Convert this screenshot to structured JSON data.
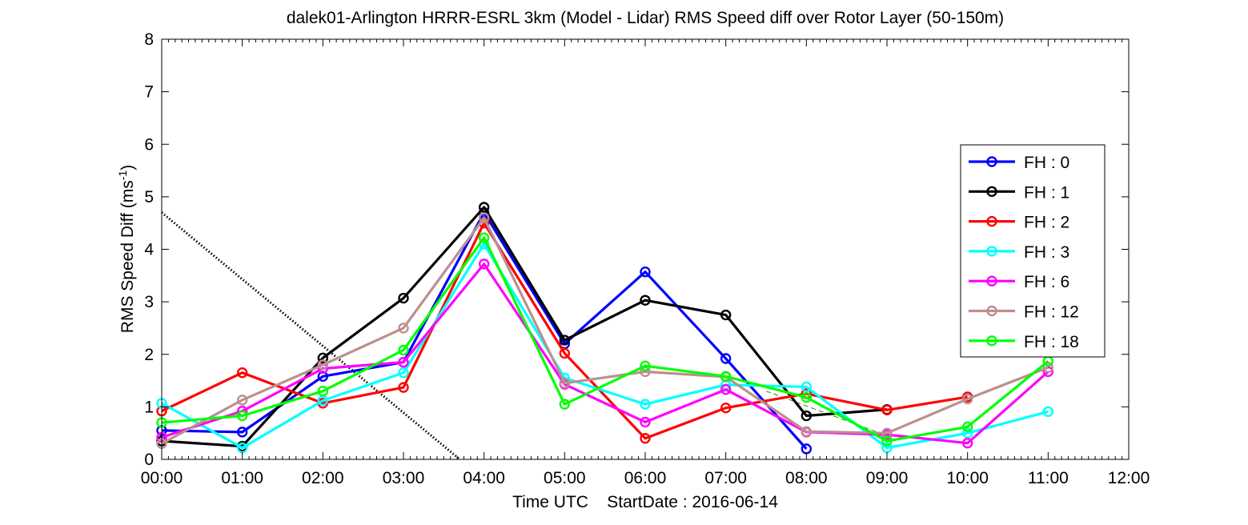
{
  "chart_data": {
    "type": "line",
    "title": "dalek01-Arlington HRRR-ESRL 3km (Model - Lidar) RMS Speed diff over Rotor Layer (50-150m)",
    "xlabel": "Time UTC    StartDate : 2016-06-14",
    "ylabel_main": "RMS Speed Diff (ms",
    "ylabel_sup": "-1",
    "ylabel_end": ")",
    "x_ticks": [
      "00:00",
      "01:00",
      "02:00",
      "03:00",
      "04:00",
      "05:00",
      "06:00",
      "07:00",
      "08:00",
      "09:00",
      "10:00",
      "11:00",
      "12:00"
    ],
    "y_ticks": [
      "0",
      "1",
      "2",
      "3",
      "4",
      "5",
      "6",
      "7",
      "8"
    ],
    "xlim": [
      0,
      12
    ],
    "ylim": [
      0,
      8
    ],
    "grid": false,
    "legend_position": "right",
    "series": [
      {
        "name": "FH : 0",
        "color": "#0000ff",
        "x": [
          0,
          1,
          2,
          3,
          4,
          5,
          6,
          7,
          8
        ],
        "values": [
          0.55,
          0.52,
          1.58,
          1.85,
          4.7,
          2.2,
          3.57,
          1.92,
          0.2
        ]
      },
      {
        "name": "FH : 1",
        "color": "#000000",
        "x": [
          0,
          1,
          2,
          3,
          4,
          5,
          6,
          7,
          8,
          9
        ],
        "values": [
          0.35,
          0.25,
          1.93,
          3.07,
          4.8,
          2.27,
          3.03,
          2.75,
          0.83,
          0.95
        ]
      },
      {
        "name": "FH : 2",
        "color": "#ff0000",
        "x": [
          0,
          1,
          2,
          3,
          4,
          5,
          6,
          7,
          8,
          9,
          10
        ],
        "values": [
          0.92,
          1.65,
          1.07,
          1.37,
          4.5,
          2.02,
          0.4,
          0.98,
          1.25,
          0.94,
          1.19
        ]
      },
      {
        "name": "FH : 3",
        "color": "#00ffff",
        "x": [
          0,
          1,
          2,
          3,
          4,
          5,
          6,
          7,
          8,
          9,
          10,
          11
        ],
        "values": [
          1.07,
          0.22,
          1.12,
          1.65,
          4.1,
          1.55,
          1.05,
          1.42,
          1.38,
          0.22,
          0.5,
          0.91
        ]
      },
      {
        "name": "FH : 6",
        "color": "#ff00ff",
        "x": [
          0,
          1,
          2,
          3,
          4,
          5,
          6,
          7,
          8,
          9,
          10,
          11
        ],
        "values": [
          0.42,
          0.92,
          1.73,
          1.85,
          3.72,
          1.43,
          0.71,
          1.33,
          0.52,
          0.47,
          0.31,
          1.67
        ]
      },
      {
        "name": "FH : 12",
        "color": "#bc8f8f",
        "x": [
          0,
          1,
          2,
          3,
          4,
          5,
          6,
          7,
          8,
          9,
          10,
          11
        ],
        "values": [
          0.3,
          1.13,
          1.8,
          2.5,
          4.6,
          1.45,
          1.67,
          1.57,
          0.53,
          0.5,
          1.15,
          1.75
        ]
      },
      {
        "name": "FH : 18",
        "color": "#00ff00",
        "x": [
          0,
          1,
          2,
          3,
          4,
          5,
          6,
          7,
          8,
          9,
          10,
          11
        ],
        "values": [
          0.7,
          0.83,
          1.3,
          2.08,
          4.22,
          1.05,
          1.78,
          1.58,
          1.18,
          0.35,
          0.62,
          1.87
        ]
      }
    ],
    "reference_lines": [
      {
        "style": "dotted",
        "color": "#000000",
        "x": [
          0,
          3.7
        ],
        "values": [
          4.7,
          0
        ]
      },
      {
        "style": "dashed",
        "color": "#228b22",
        "x": [
          7.5,
          9
        ],
        "values": [
          1.3,
          0.45
        ]
      }
    ]
  }
}
